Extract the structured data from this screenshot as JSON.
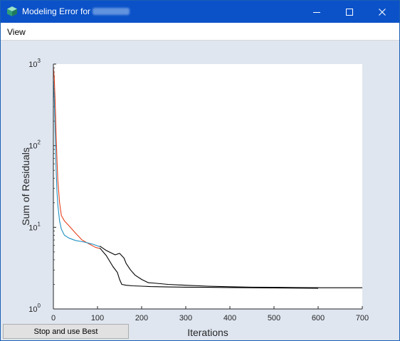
{
  "window": {
    "title": "Modeling Error for",
    "minimize_label": "Minimize",
    "maximize_label": "Maximize",
    "close_label": "Close"
  },
  "menu": {
    "items": [
      "View"
    ]
  },
  "buttons": {
    "stop_label": "Stop and use Best"
  },
  "colors": {
    "titlebar": "#0b52c9",
    "figure_bg": "#dfe6f0",
    "series_red": "#e8401c",
    "series_blue": "#1f8fc2",
    "series_black": "#000000"
  },
  "chart_data": {
    "type": "line",
    "xlabel": "Iterations",
    "ylabel": "Sum of Residuals",
    "xlim": [
      0,
      700
    ],
    "ylim": [
      1,
      1000
    ],
    "y_scale": "log",
    "grid": false,
    "x_ticks": [
      "0",
      "100",
      "200",
      "300",
      "400",
      "500",
      "600",
      "700"
    ],
    "y_ticks": [
      {
        "base": "10",
        "exp": "0"
      },
      {
        "base": "10",
        "exp": "1"
      },
      {
        "base": "10",
        "exp": "2"
      },
      {
        "base": "10",
        "exp": "3"
      }
    ],
    "series": [
      {
        "color": "#e8401c",
        "x": [
          0,
          2,
          4,
          6,
          8,
          10,
          14,
          18,
          25,
          35,
          50,
          65,
          80,
          95,
          105
        ],
        "y": [
          900,
          700,
          350,
          150,
          70,
          38,
          20,
          14,
          12,
          10.5,
          8.5,
          7,
          6.3,
          5.7,
          5.5
        ]
      },
      {
        "color": "#1f8fc2",
        "x": [
          0,
          2,
          4,
          6,
          8,
          10,
          14,
          18,
          25,
          35,
          50,
          70,
          90,
          105
        ],
        "y": [
          650,
          400,
          140,
          55,
          28,
          19,
          12,
          9.5,
          8,
          7.4,
          6.9,
          6.6,
          6.2,
          5.8
        ]
      },
      {
        "color": "#000000",
        "x": [
          105,
          120,
          135,
          145,
          150,
          155,
          165,
          180,
          200,
          220,
          260,
          300,
          350,
          400,
          450,
          500,
          550,
          600
        ],
        "y": [
          5.6,
          4.5,
          3.3,
          2.8,
          2.3,
          2.0,
          1.95,
          1.92,
          1.9,
          1.88,
          1.86,
          1.85,
          1.84,
          1.83,
          1.82,
          1.81,
          1.8,
          1.79
        ]
      },
      {
        "color": "#000000",
        "x": [
          105,
          120,
          140,
          150,
          160,
          165,
          175,
          185,
          200,
          215,
          225,
          260,
          300,
          350,
          400,
          450,
          500,
          550,
          610,
          650,
          700
        ],
        "y": [
          5.9,
          5.2,
          4.6,
          4.8,
          4.2,
          3.6,
          3.0,
          2.6,
          2.3,
          2.1,
          2.08,
          2.0,
          1.95,
          1.9,
          1.87,
          1.85,
          1.84,
          1.83,
          1.82,
          1.82,
          1.82
        ]
      }
    ]
  }
}
